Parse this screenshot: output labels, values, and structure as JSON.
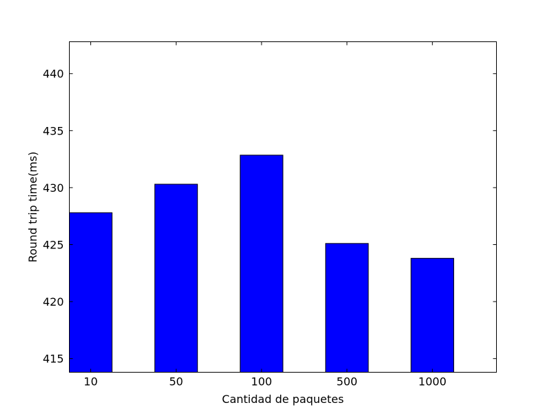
{
  "chart_data": {
    "type": "bar",
    "title": "",
    "xlabel": "Cantidad de paquetes",
    "ylabel": "Round trip time(ms)",
    "categories": [
      "10",
      "50",
      "100",
      "500",
      "1000"
    ],
    "values": [
      427.8,
      430.3,
      432.85,
      425.1,
      423.8
    ],
    "ylim": [
      413.8,
      442.8
    ],
    "yticks": [
      415,
      420,
      425,
      430,
      435,
      440
    ],
    "bar_color": "#0000ff",
    "edge_color": "#000000",
    "grid": false,
    "legend": false
  }
}
